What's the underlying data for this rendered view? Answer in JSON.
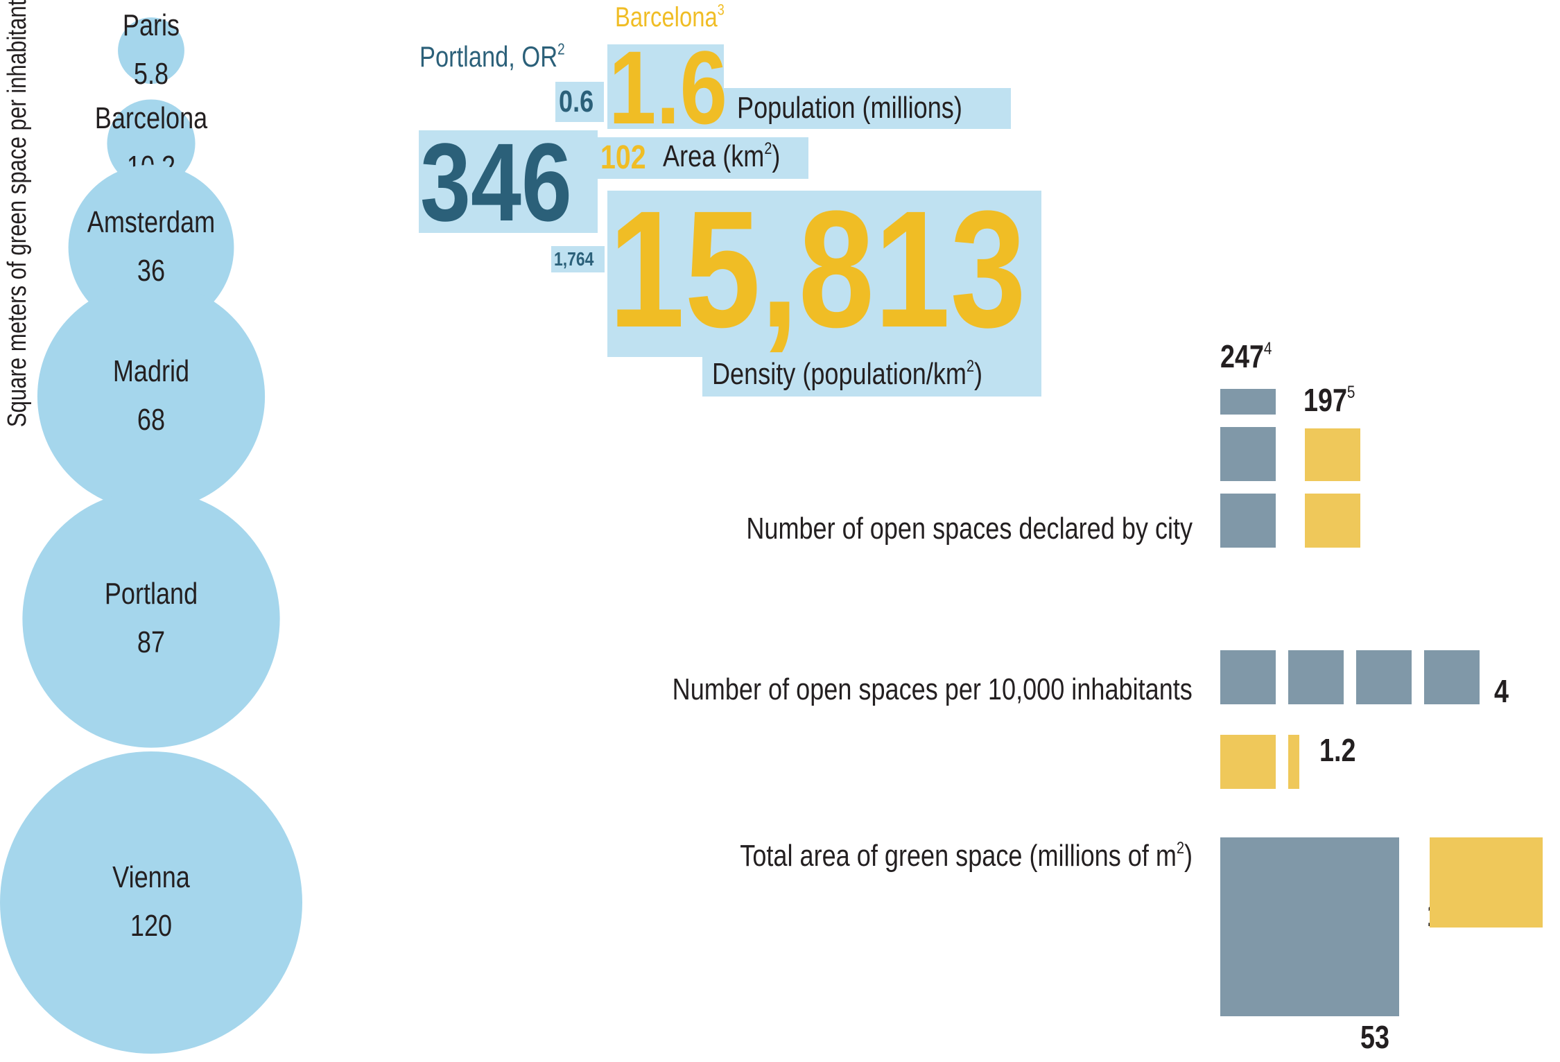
{
  "colors": {
    "portland": "#2b6079",
    "barcelona": "#f0bd25",
    "panel": "#bfe1f1",
    "bubble": "#a5d6ec",
    "gray_block": "#8098a8",
    "yellow_block": "#efc85a",
    "text": "#231f20"
  },
  "bubble_axis_label": "Square meters of green space per inhabitant",
  "bubble_axis_sup": "1",
  "comparison": {
    "barcelona_label": "Barcelona",
    "barcelona_sup": "3",
    "portland_label": "Portland, OR",
    "portland_sup": "2",
    "population_label": "Population (millions)",
    "area_label": "Area (km",
    "area_sup": "2",
    "area_close": ")",
    "density_label": "Density (population/km",
    "density_sup": "2",
    "density_close": ")",
    "portland_population": "0.6",
    "barcelona_population": "1.6",
    "portland_area": "346",
    "barcelona_area": "102",
    "portland_density": "1,764",
    "barcelona_density": "15,813"
  },
  "metrics": {
    "declared_label": "Number of open spaces declared by city",
    "declared_portland": "247",
    "declared_portland_sup": "4",
    "declared_barcelona": "197",
    "declared_barcelona_sup": "5",
    "per10k_label": "Number of open spaces per 10,000 inhabitants",
    "per10k_portland": "4",
    "per10k_barcelona": "1.2",
    "total_label": "Total area of green space (millions of m",
    "total_sup": "2",
    "total_close": ")",
    "total_portland": "53",
    "total_barcelona": "16"
  },
  "chart_data": {
    "type": "bubble",
    "ylabel": "Square meters of green space per inhabitant",
    "categories": [
      "Paris",
      "Barcelona",
      "Amsterdam",
      "Madrid",
      "Portland",
      "Vienna"
    ],
    "values": [
      5.8,
      10.2,
      36,
      68,
      87,
      120
    ],
    "value_labels": [
      "5.8",
      "10.2",
      "36",
      "68",
      "87",
      "120"
    ],
    "comparison_series": [
      {
        "name": "Portland, OR",
        "population_millions": 0.6,
        "area_km2": 346,
        "density_per_km2": 1764,
        "open_spaces_declared": 247,
        "open_spaces_per_10000": 4,
        "green_space_millions_m2": 53
      },
      {
        "name": "Barcelona",
        "population_millions": 1.6,
        "area_km2": 102,
        "density_per_km2": 15813,
        "open_spaces_declared": 197,
        "open_spaces_per_10000": 1.2,
        "green_space_millions_m2": 16
      }
    ]
  }
}
